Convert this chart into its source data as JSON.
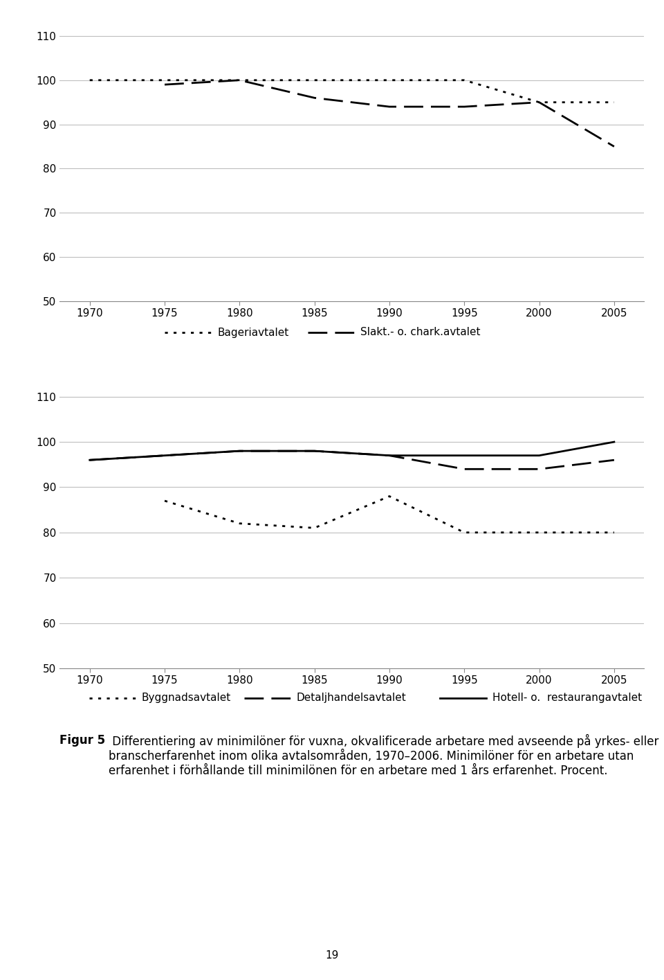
{
  "years": [
    1970,
    1975,
    1980,
    1985,
    1990,
    1995,
    2000,
    2005
  ],
  "chart1": {
    "Bageriavtalet": [
      100,
      100,
      100,
      100,
      100,
      100,
      95,
      95
    ],
    "Slakt_chark": [
      null,
      99,
      100,
      96,
      94,
      94,
      95,
      85
    ]
  },
  "chart2": {
    "Byggnadsavtalet": [
      null,
      87,
      82,
      81,
      88,
      80,
      80,
      80
    ],
    "Detaljhandelsavtalet": [
      96,
      97,
      98,
      98,
      97,
      94,
      94,
      96
    ],
    "Hotell_restaurang": [
      96,
      97,
      98,
      98,
      97,
      97,
      97,
      100
    ]
  },
  "ylim": [
    50,
    115
  ],
  "yticks": [
    50,
    60,
    70,
    80,
    90,
    100,
    110
  ],
  "xticks": [
    1970,
    1975,
    1980,
    1985,
    1990,
    1995,
    2000,
    2005
  ],
  "legend1_dotted": "Bageriavtalet",
  "legend1_dashed": "Slakt.- o. chark.avtalet",
  "legend2_dotted": "Byggnadsavtalet",
  "legend2_dashed": "Detaljhandelsavtalet",
  "legend2_solid": "Hotell- o.  restaurangavtalet",
  "caption_bold": "Figur 5",
  "caption_normal": " Differentiering av minimilöner för vuxna, okvalificerade arbetare med avseende på yrkes- eller branscherfarenhet inom olika avtalsområden, 1970–2006. Minimilöner för en arbetare utan erfarenhet i förhållande till minimilönen för en arbetare med 1 års erfarenhet. Procent.",
  "page_number": "19",
  "background_color": "#ffffff",
  "line_color": "#000000",
  "grid_color": "#bebebe"
}
